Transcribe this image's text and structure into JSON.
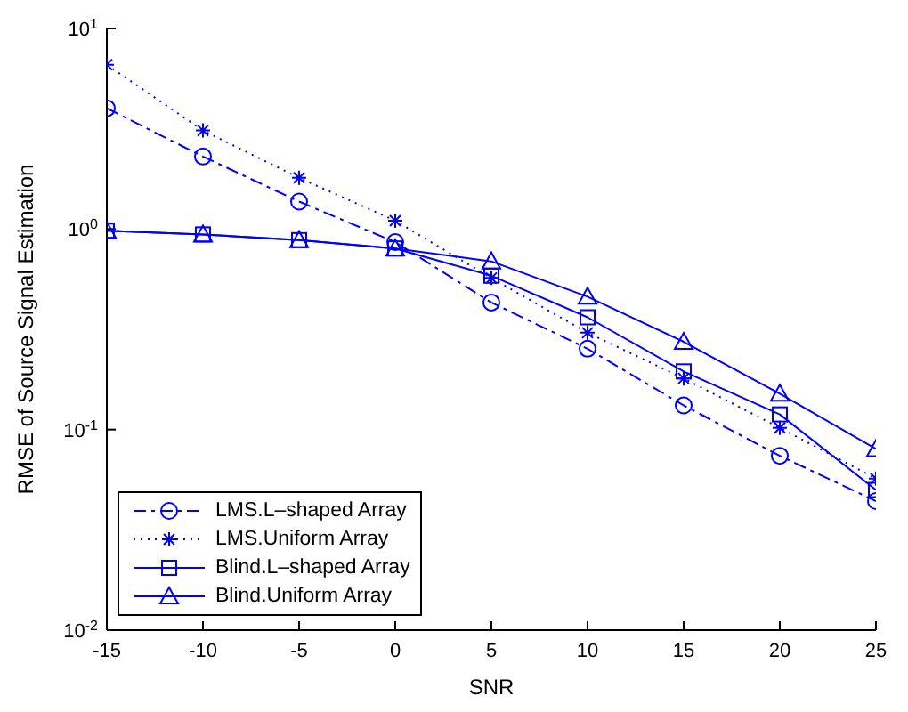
{
  "chart_data": {
    "type": "line",
    "xlabel": "SNR",
    "ylabel": "RMSE of Source Signal Estimation",
    "x": [
      -15,
      -10,
      -5,
      0,
      5,
      10,
      15,
      20,
      25
    ],
    "series": [
      {
        "name": "LMS.L–shaped Array",
        "color": "#0000ff",
        "marker": "circle",
        "line_style": "dashed",
        "values": [
          4.0,
          2.3,
          1.37,
          0.86,
          0.43,
          0.253,
          0.132,
          0.074,
          0.044
        ]
      },
      {
        "name": "LMS.Uniform Array",
        "color": "#0000ff",
        "marker": "cross",
        "line_style": "dotted",
        "values": [
          6.6,
          3.1,
          1.8,
          1.1,
          0.57,
          0.304,
          0.18,
          0.102,
          0.057
        ]
      },
      {
        "name": "Blind.L–shaped Array",
        "color": "#0000ff",
        "marker": "square",
        "line_style": "solid",
        "values": [
          0.98,
          0.94,
          0.88,
          0.8,
          0.585,
          0.363,
          0.195,
          0.119,
          0.05
        ]
      },
      {
        "name": "Blind.Uniform Array",
        "color": "#0000ff",
        "marker": "triangle",
        "line_style": "solid",
        "values": [
          0.98,
          0.94,
          0.88,
          0.8,
          0.69,
          0.46,
          0.274,
          0.151,
          0.08
        ]
      }
    ],
    "xlim": [
      -15,
      25
    ],
    "xticks": [
      -15,
      -10,
      -5,
      0,
      5,
      10,
      15,
      20,
      25
    ],
    "log": "y",
    "ylim": [
      0.01,
      10
    ],
    "yticks": [
      {
        "value": 0.01,
        "label": "10$^{-2}$"
      },
      {
        "value": 0.1,
        "label": "10$^{-1}$"
      },
      {
        "value": 1,
        "label": "10$^{0}$"
      },
      {
        "value": 10,
        "label": "10$^{1}$"
      }
    ],
    "grid": false,
    "legend": "bottom left"
  }
}
